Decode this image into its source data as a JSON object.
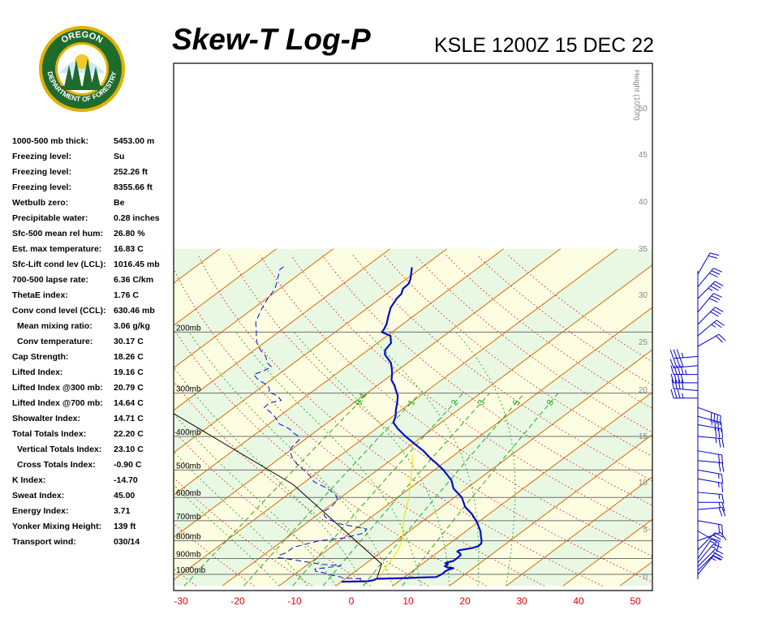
{
  "header": {
    "title": "Skew-T Log-P",
    "subtitle": "KSLE 1200Z 15 DEC 22"
  },
  "logo": {
    "top_text": "OREGON",
    "bottom_text": "DEPARTMENT OF FORESTRY",
    "ring_color": "#1e6b2e",
    "accent_color": "#e0b000"
  },
  "indices": [
    {
      "label": "1000-500 mb thick:",
      "value": "5453.00 m"
    },
    {
      "label": "Freezing level:",
      "value": "Su"
    },
    {
      "label": "Freezing level:",
      "value": "252.26 ft"
    },
    {
      "label": "Freezing level:",
      "value": "8355.66 ft"
    },
    {
      "label": "Wetbulb zero:",
      "value": "Be"
    },
    {
      "label": "Precipitable water:",
      "value": "0.28 inches"
    },
    {
      "label": "Sfc-500 mean rel hum:",
      "value": "26.80 %"
    },
    {
      "label": "Est. max temperature:",
      "value": "16.83 C"
    },
    {
      "label": "Sfc-Lift cond lev (LCL):",
      "value": "1016.45 mb"
    },
    {
      "label": "700-500 lapse rate:",
      "value": "6.36 C/km"
    },
    {
      "label": "ThetaE index:",
      "value": "1.76 C"
    },
    {
      "label": "Conv cond level (CCL):",
      "value": "630.46 mb"
    },
    {
      "label": "Mean mixing ratio:",
      "value": "3.06 g/kg",
      "indent": true
    },
    {
      "label": "Conv temperature:",
      "value": "30.17 C",
      "indent": true
    },
    {
      "label": "Cap Strength:",
      "value": "18.26 C"
    },
    {
      "label": "Lifted Index:",
      "value": "19.16 C"
    },
    {
      "label": "Lifted Index @300 mb:",
      "value": "20.79 C"
    },
    {
      "label": "Lifted Index @700 mb:",
      "value": "14.64 C"
    },
    {
      "label": "Showalter Index:",
      "value": "14.71 C"
    },
    {
      "label": "Total Totals Index:",
      "value": "22.20 C"
    },
    {
      "label": "Vertical Totals Index:",
      "value": "23.10 C",
      "indent": true
    },
    {
      "label": "Cross Totals Index:",
      "value": "-0.90 C",
      "indent": true
    },
    {
      "label": "K Index:",
      "value": "-14.70"
    },
    {
      "label": "Sweat Index:",
      "value": "45.00"
    },
    {
      "label": "Energy Index:",
      "value": "3.71"
    },
    {
      "label": "Yonker Mixing Height:",
      "value": "139 ft"
    },
    {
      "label": "Transport wind:",
      "value": "030/14"
    }
  ],
  "chart_data": {
    "type": "line",
    "title": "Skew-T Log-P",
    "subtitle": "KSLE 1200Z 15 DEC 22",
    "x_ticks": [
      "-30",
      "-20",
      "-10",
      "0",
      "10",
      "20",
      "30",
      "40",
      "50"
    ],
    "xlim": [
      -30,
      50
    ],
    "pressure_levels": [
      {
        "p": 200,
        "label": "200mb"
      },
      {
        "p": 300,
        "label": "300mb"
      },
      {
        "p": 400,
        "label": "400mb"
      },
      {
        "p": 500,
        "label": "500mb"
      },
      {
        "p": 600,
        "label": "600mb"
      },
      {
        "p": 700,
        "label": "700mb"
      },
      {
        "p": 800,
        "label": "800mb"
      },
      {
        "p": 900,
        "label": "900mb"
      },
      {
        "p": 1000,
        "label": "1000mb"
      }
    ],
    "height_axis": {
      "label": "Height (1000ft)",
      "ticks": [
        "0",
        "5",
        "10",
        "15",
        "20",
        "25",
        "30",
        "35",
        "40",
        "45",
        "50"
      ]
    },
    "mixing_ratio_labels": [
      "0.4",
      "1",
      "2",
      "3",
      "5",
      "8"
    ],
    "colors": {
      "temperature": "#0010c8",
      "dewpoint": "#0010c8",
      "parcel": "#000000",
      "virtual": "#e8e000",
      "isotherm": "#d86a00",
      "dry_adiabat": "#d81818",
      "moist_adiabat": "#22aa22",
      "mixing_ratio": "#22aa22",
      "pressure_line": "#707070",
      "x_tick_label": "#e00000",
      "wind_barb": "#0000d0"
    },
    "series": [
      {
        "style": "solid-thick",
        "points": [
          [
            1050,
            0.0
          ],
          [
            1047,
            4.5
          ],
          [
            1040,
            5.3
          ],
          [
            1033,
            5.4
          ],
          [
            1030,
            5.5
          ],
          [
            1025,
            10.5
          ],
          [
            1022,
            12.5
          ],
          [
            1018,
            15.6
          ],
          [
            1005,
            15.8
          ],
          [
            992,
            15.9
          ],
          [
            980,
            15.8
          ],
          [
            970,
            16.0
          ],
          [
            960,
            16.5
          ],
          [
            955,
            15.3
          ],
          [
            950,
            14.8
          ],
          [
            947,
            14.5
          ],
          [
            940,
            14.7
          ],
          [
            935,
            14.6
          ],
          [
            930,
            14.0
          ],
          [
            925,
            14.0
          ],
          [
            915,
            14.8
          ],
          [
            900,
            14.8
          ],
          [
            880,
            14.7
          ],
          [
            870,
            14.2
          ],
          [
            860,
            13.3
          ],
          [
            852,
            13.3
          ],
          [
            840,
            15.0
          ],
          [
            830,
            15.7
          ],
          [
            815,
            15.6
          ],
          [
            800,
            15.0
          ],
          [
            780,
            14.0
          ],
          [
            750,
            12.5
          ],
          [
            710,
            10.0
          ],
          [
            670,
            7.0
          ],
          [
            640,
            4.2
          ],
          [
            600,
            1.3
          ],
          [
            565,
            -2.3
          ],
          [
            535,
            -4.6
          ],
          [
            500,
            -8.4
          ],
          [
            480,
            -11.0
          ],
          [
            460,
            -13.8
          ],
          [
            440,
            -16.5
          ],
          [
            420,
            -19.7
          ],
          [
            400,
            -23.0
          ],
          [
            380,
            -26.2
          ],
          [
            365,
            -28.4
          ],
          [
            350,
            -29.5
          ],
          [
            335,
            -31.0
          ],
          [
            320,
            -32.4
          ],
          [
            305,
            -34.0
          ],
          [
            295,
            -35.5
          ],
          [
            285,
            -37.0
          ],
          [
            275,
            -38.8
          ],
          [
            265,
            -40.0
          ],
          [
            255,
            -41.4
          ],
          [
            245,
            -43.0
          ],
          [
            232,
            -46.0
          ],
          [
            225,
            -47.0
          ],
          [
            215,
            -47.6
          ],
          [
            205,
            -49.4
          ],
          [
            200,
            -51.8
          ],
          [
            198,
            -51.9
          ],
          [
            190,
            -52.8
          ],
          [
            180,
            -54.4
          ],
          [
            170,
            -56.0
          ],
          [
            160,
            -57.1
          ],
          [
            155,
            -57.4
          ],
          [
            150,
            -58.3
          ],
          [
            145,
            -58.5
          ],
          [
            140,
            -59.4
          ],
          [
            130,
            -61.8
          ]
        ]
      },
      {
        "style": "dashed",
        "points": [
          [
            1030,
            2.8
          ],
          [
            1025,
            -0.5
          ],
          [
            1015,
            -1.6
          ],
          [
            1000,
            -4.2
          ],
          [
            990,
            -5.2
          ],
          [
            980,
            -7.0
          ],
          [
            975,
            -7.2
          ],
          [
            965,
            -7.7
          ],
          [
            950,
            -4.8
          ],
          [
            945,
            -3.8
          ],
          [
            935,
            -7.8
          ],
          [
            920,
            -11.0
          ],
          [
            905,
            -14.3
          ],
          [
            895,
            -16.8
          ],
          [
            880,
            -17.2
          ],
          [
            865,
            -16.5
          ],
          [
            850,
            -16.6
          ],
          [
            835,
            -16.5
          ],
          [
            800,
            -13.6
          ],
          [
            785,
            -9.8
          ],
          [
            760,
            -7.5
          ],
          [
            740,
            -8.0
          ],
          [
            715,
            -14.0
          ],
          [
            690,
            -17.5
          ],
          [
            680,
            -18.4
          ],
          [
            660,
            -19.7
          ],
          [
            640,
            -19.4
          ],
          [
            610,
            -20.0
          ],
          [
            590,
            -21.5
          ],
          [
            565,
            -24.5
          ],
          [
            540,
            -28.5
          ],
          [
            520,
            -30.5
          ],
          [
            500,
            -33.0
          ],
          [
            480,
            -35.7
          ],
          [
            460,
            -38.0
          ],
          [
            440,
            -40.0
          ],
          [
            430,
            -40.5
          ],
          [
            410,
            -40.9
          ],
          [
            400,
            -41.8
          ],
          [
            390,
            -43.7
          ],
          [
            380,
            -45.3
          ],
          [
            368,
            -48.2
          ],
          [
            362,
            -49.0
          ],
          [
            350,
            -50.8
          ],
          [
            340,
            -52.6
          ],
          [
            330,
            -54.7
          ],
          [
            320,
            -54.9
          ],
          [
            315,
            -53.4
          ],
          [
            305,
            -55.2
          ],
          [
            298,
            -57.6
          ],
          [
            293,
            -58.0
          ],
          [
            285,
            -59.3
          ],
          [
            275,
            -62.2
          ],
          [
            270,
            -63.3
          ],
          [
            265,
            -64.4
          ],
          [
            260,
            -63.6
          ],
          [
            252,
            -63.0
          ],
          [
            245,
            -64.8
          ],
          [
            235,
            -66.5
          ],
          [
            225,
            -69.0
          ],
          [
            215,
            -71.2
          ],
          [
            205,
            -73.0
          ],
          [
            195,
            -74.8
          ],
          [
            188,
            -76.2
          ],
          [
            180,
            -77.3
          ],
          [
            170,
            -78.6
          ],
          [
            160,
            -79.8
          ],
          [
            150,
            -80.8
          ],
          [
            140,
            -82.8
          ],
          [
            132,
            -84.5
          ],
          [
            128,
            -84.5
          ]
        ]
      }
    ],
    "parcel_points": [
      [
        1030,
        5.5
      ],
      [
        934,
        2.9
      ],
      [
        550,
        -31.5
      ],
      [
        323,
        -74.2
      ],
      [
        200,
        -101.7
      ],
      [
        130,
        -126.5
      ]
    ],
    "virtual_points": [
      [
        1030,
        5.8
      ],
      [
        950,
        4.3
      ],
      [
        900,
        3.5
      ],
      [
        850,
        2.5
      ],
      [
        800,
        1.0
      ],
      [
        700,
        -3.5
      ],
      [
        600,
        -8.0
      ],
      [
        500,
        -14.0
      ],
      [
        450,
        -17.5
      ]
    ],
    "wind_barbs": [
      {
        "p": 1000,
        "dir": 40,
        "spd": 15
      },
      {
        "p": 975,
        "dir": 45,
        "spd": 20
      },
      {
        "p": 950,
        "dir": 45,
        "spd": 20
      },
      {
        "p": 925,
        "dir": 40,
        "spd": 15
      },
      {
        "p": 900,
        "dir": 35,
        "spd": 15
      },
      {
        "p": 850,
        "dir": 45,
        "spd": 20
      },
      {
        "p": 800,
        "dir": 70,
        "spd": 10
      },
      {
        "p": 750,
        "dir": 120,
        "spd": 15
      },
      {
        "p": 700,
        "dir": 100,
        "spd": 20
      },
      {
        "p": 650,
        "dir": 85,
        "spd": 20
      },
      {
        "p": 620,
        "dir": 90,
        "spd": 15
      },
      {
        "p": 580,
        "dir": 95,
        "spd": 15
      },
      {
        "p": 530,
        "dir": 100,
        "spd": 15
      },
      {
        "p": 500,
        "dir": 100,
        "spd": 15
      },
      {
        "p": 470,
        "dir": 95,
        "spd": 20
      },
      {
        "p": 440,
        "dir": 100,
        "spd": 20
      },
      {
        "p": 400,
        "dir": 95,
        "spd": 25
      },
      {
        "p": 370,
        "dir": 100,
        "spd": 30
      },
      {
        "p": 350,
        "dir": 105,
        "spd": 35
      },
      {
        "p": 330,
        "dir": 110,
        "spd": 40
      },
      {
        "p": 310,
        "dir": 270,
        "spd": 35
      },
      {
        "p": 295,
        "dir": 275,
        "spd": 40
      },
      {
        "p": 280,
        "dir": 270,
        "spd": 40
      },
      {
        "p": 265,
        "dir": 270,
        "spd": 45
      },
      {
        "p": 250,
        "dir": 265,
        "spd": 40
      },
      {
        "p": 235,
        "dir": 265,
        "spd": 35
      },
      {
        "p": 220,
        "dir": 60,
        "spd": 20
      },
      {
        "p": 205,
        "dir": 50,
        "spd": 25
      },
      {
        "p": 190,
        "dir": 45,
        "spd": 30
      },
      {
        "p": 175,
        "dir": 40,
        "spd": 30
      },
      {
        "p": 160,
        "dir": 45,
        "spd": 35
      },
      {
        "p": 148,
        "dir": 40,
        "spd": 30
      },
      {
        "p": 136,
        "dir": 30,
        "spd": 20
      }
    ]
  }
}
